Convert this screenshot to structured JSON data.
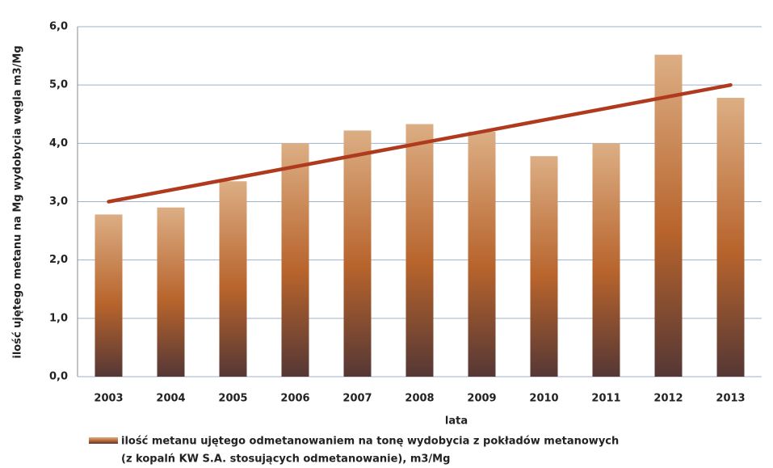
{
  "chart_data": {
    "type": "bar",
    "x_label": "lata",
    "y_label": "ilość ujętego metanu na Mg wydobycia węgla m3/Mg",
    "categories": [
      "2003",
      "2004",
      "2005",
      "2006",
      "2007",
      "2008",
      "2009",
      "2010",
      "2011",
      "2012",
      "2013"
    ],
    "series": [
      {
        "name": [
          "ilość metanu ujętego odmetanowaniem na tonę wydobycia z pokładów metanowych",
          "(z kopalń KW S.A. stosujących odmetanowanie), m3/Mg"
        ],
        "color": "#b8642c",
        "values": [
          2.78,
          2.9,
          3.35,
          4.0,
          4.22,
          4.33,
          4.2,
          3.78,
          4.0,
          5.52,
          4.78
        ]
      }
    ],
    "trend": {
      "color": "#b03a1e",
      "values": [
        3.0,
        3.2,
        3.4,
        3.6,
        3.8,
        4.0,
        4.2,
        4.4,
        4.6,
        4.8,
        5.0
      ]
    },
    "ylim": [
      0,
      6
    ],
    "yticks": [
      {
        "value": 0,
        "label": "0,0"
      },
      {
        "value": 1,
        "label": "1,0"
      },
      {
        "value": 2,
        "label": "2,0"
      },
      {
        "value": 3,
        "label": "3,0"
      },
      {
        "value": 4,
        "label": "4,0"
      },
      {
        "value": 5,
        "label": "5,0"
      },
      {
        "value": 6,
        "label": "6,0"
      }
    ],
    "grid": true
  }
}
